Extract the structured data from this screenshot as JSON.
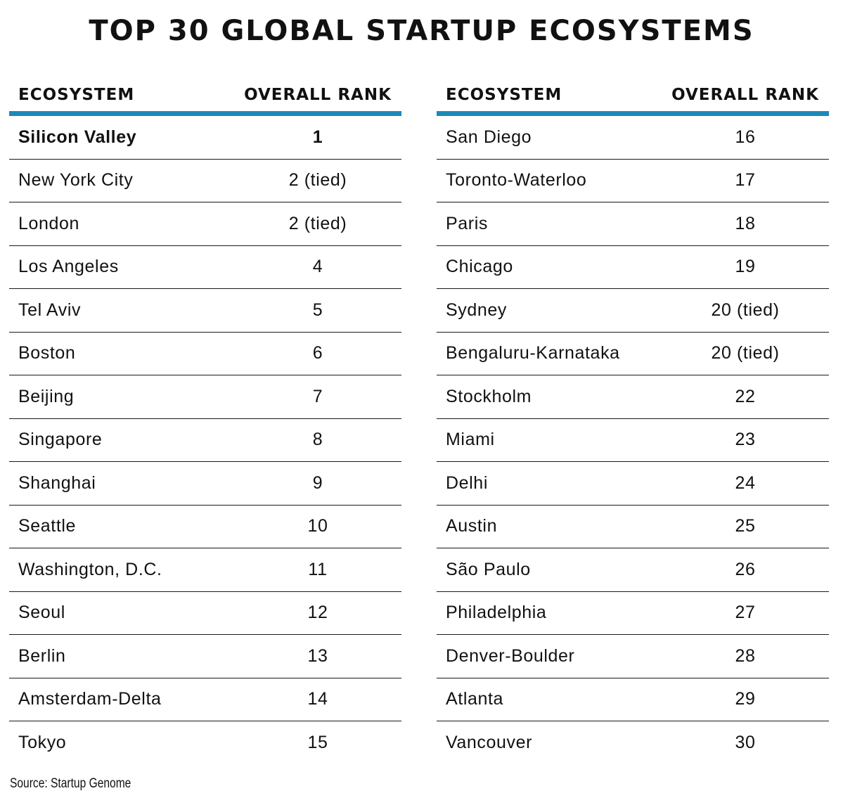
{
  "title": "TOP 30 GLOBAL STARTUP ECOSYSTEMS",
  "source": "Source: Startup Genome",
  "colors": {
    "header_rule": "#1c8ab7",
    "row_rule": "#1a1a1a",
    "text": "#111111"
  },
  "chart_data": {
    "type": "table",
    "columns": [
      "ECOSYSTEM",
      "OVERALL RANK"
    ],
    "left_table": [
      {
        "ecosystem": "Silicon Valley",
        "rank": "1"
      },
      {
        "ecosystem": "New York City",
        "rank": "2 (tied)"
      },
      {
        "ecosystem": "London",
        "rank": "2 (tied)"
      },
      {
        "ecosystem": "Los Angeles",
        "rank": "4"
      },
      {
        "ecosystem": "Tel Aviv",
        "rank": "5"
      },
      {
        "ecosystem": "Boston",
        "rank": "6"
      },
      {
        "ecosystem": "Beijing",
        "rank": "7"
      },
      {
        "ecosystem": "Singapore",
        "rank": "8"
      },
      {
        "ecosystem": "Shanghai",
        "rank": "9"
      },
      {
        "ecosystem": "Seattle",
        "rank": "10"
      },
      {
        "ecosystem": "Washington, D.C.",
        "rank": "11"
      },
      {
        "ecosystem": "Seoul",
        "rank": "12"
      },
      {
        "ecosystem": "Berlin",
        "rank": "13"
      },
      {
        "ecosystem": "Amsterdam-Delta",
        "rank": "14"
      },
      {
        "ecosystem": "Tokyo",
        "rank": "15"
      }
    ],
    "right_table": [
      {
        "ecosystem": "San Diego",
        "rank": "16"
      },
      {
        "ecosystem": "Toronto-Waterloo",
        "rank": "17"
      },
      {
        "ecosystem": "Paris",
        "rank": "18"
      },
      {
        "ecosystem": "Chicago",
        "rank": "19"
      },
      {
        "ecosystem": "Sydney",
        "rank": "20 (tied)"
      },
      {
        "ecosystem": "Bengaluru-Karnataka",
        "rank": "20 (tied)"
      },
      {
        "ecosystem": "Stockholm",
        "rank": "22"
      },
      {
        "ecosystem": "Miami",
        "rank": "23"
      },
      {
        "ecosystem": "Delhi",
        "rank": "24"
      },
      {
        "ecosystem": "Austin",
        "rank": "25"
      },
      {
        "ecosystem": "São Paulo",
        "rank": "26"
      },
      {
        "ecosystem": "Philadelphia",
        "rank": "27"
      },
      {
        "ecosystem": "Denver-Boulder",
        "rank": "28"
      },
      {
        "ecosystem": "Atlanta",
        "rank": "29"
      },
      {
        "ecosystem": "Vancouver",
        "rank": "30"
      }
    ]
  }
}
